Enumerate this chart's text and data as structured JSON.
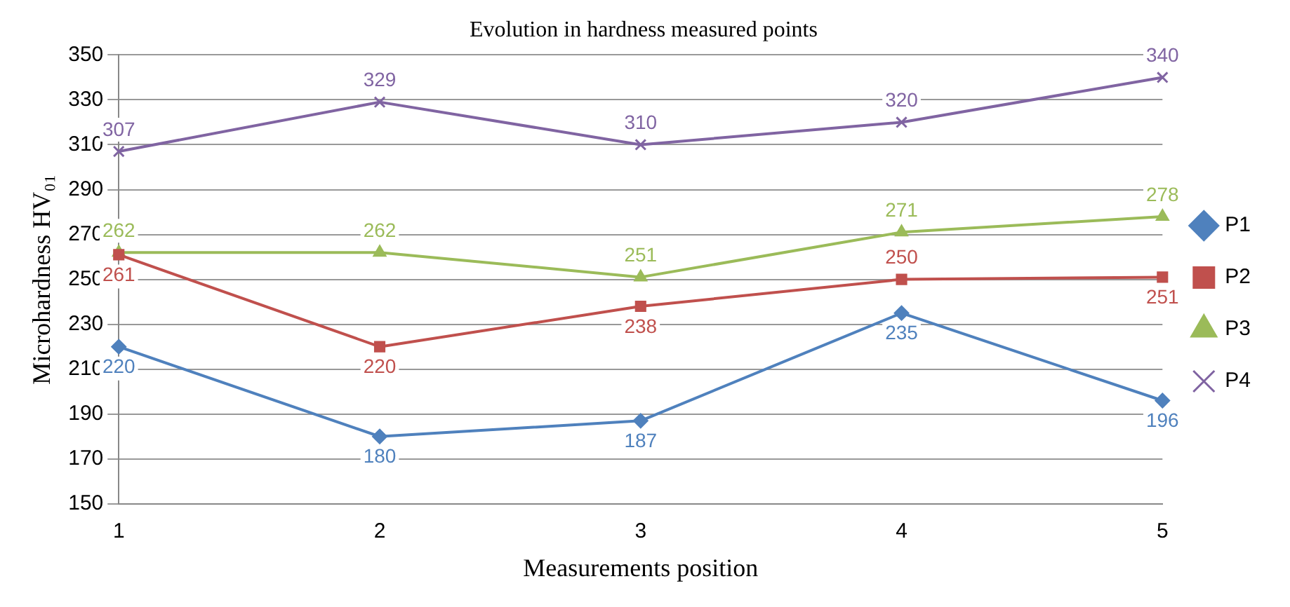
{
  "chart_data": {
    "type": "line",
    "title": "Evolution in hardness measured points",
    "xlabel": "Measurements position",
    "ylabel": "Microhardness HV₀₁",
    "categories": [
      "1",
      "2",
      "3",
      "4",
      "5"
    ],
    "series": [
      {
        "name": "P1",
        "color": "#4f81bd",
        "marker": "diamond",
        "values": [
          220,
          180,
          187,
          235,
          196
        ]
      },
      {
        "name": "P2",
        "color": "#c0504d",
        "marker": "square",
        "values": [
          261,
          220,
          238,
          250,
          251
        ]
      },
      {
        "name": "P3",
        "color": "#9bbb59",
        "marker": "triangle",
        "values": [
          262,
          262,
          251,
          271,
          278
        ]
      },
      {
        "name": "P4",
        "color": "#8064a2",
        "marker": "cross",
        "values": [
          307,
          329,
          310,
          320,
          340
        ]
      }
    ],
    "ylim": [
      150,
      350
    ],
    "yticks": [
      150,
      170,
      190,
      210,
      230,
      250,
      270,
      290,
      310,
      330,
      350
    ],
    "grid": "y",
    "legend": "right",
    "data_labels": true,
    "line_style": "solid"
  }
}
